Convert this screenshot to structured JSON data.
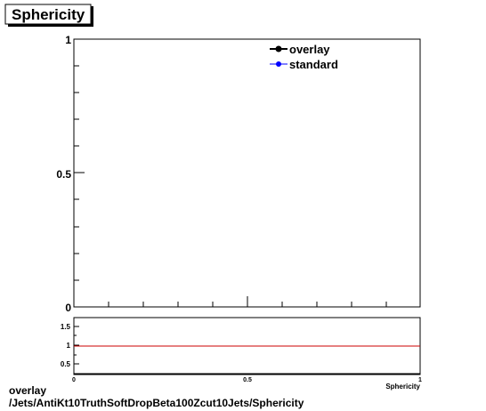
{
  "title": "Sphericity",
  "legend": [
    {
      "name": "overlay",
      "color": "#000000"
    },
    {
      "name": "standard",
      "color": "#0000ff"
    }
  ],
  "footer": {
    "line1": "overlay",
    "line2": "/Jets/AntiKt10TruthSoftDropBeta100Zcut10Jets/Sphericity"
  },
  "chart_data": [
    {
      "type": "line",
      "panel": "main",
      "x": [],
      "series": [
        {
          "name": "overlay",
          "values": []
        },
        {
          "name": "standard",
          "values": []
        }
      ],
      "xlim": [
        0,
        1
      ],
      "ylim": [
        0,
        1
      ],
      "ytick_labels": [
        "0",
        "0.5",
        "1"
      ],
      "legend_position": "top-right",
      "grid": false
    },
    {
      "type": "line",
      "panel": "ratio",
      "xlim": [
        0,
        1
      ],
      "ylim": [
        0.3,
        1.7
      ],
      "xtick_labels": [
        "0",
        "0.5",
        "1"
      ],
      "ytick_labels": [
        "0.5",
        "1",
        "1.5"
      ],
      "xlabel": "Sphericity",
      "reference_line": {
        "y": 1,
        "color": "#cc0000"
      },
      "grid": false
    }
  ]
}
